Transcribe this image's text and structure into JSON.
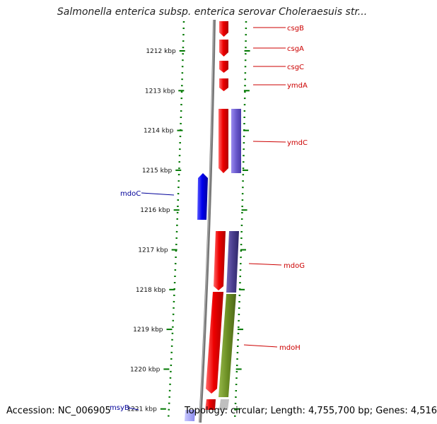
{
  "title": "Salmonella enterica subsp. enterica serovar Choleraesuis str...",
  "footer": {
    "accession": "Accession: NC_006905",
    "summary": "Topology: circular; Length: 4,755,700 bp; Genes: 4,516"
  },
  "ticks": [
    "1212 kbp",
    "1213 kbp",
    "1214 kbp",
    "1215 kbp",
    "1216 kbp",
    "1217 kbp",
    "1218 kbp",
    "1219 kbp",
    "1220 kbp",
    "1221 kbp"
  ],
  "genes": [
    {
      "name": "csgB",
      "strand": "reverse",
      "color": "#ee0000"
    },
    {
      "name": "csgA",
      "strand": "reverse",
      "color": "#ee0000"
    },
    {
      "name": "csgC",
      "strand": "reverse",
      "color": "#ee0000"
    },
    {
      "name": "ymdA",
      "strand": "reverse",
      "color": "#ee0000"
    },
    {
      "name": "ymdC",
      "strand": "reverse",
      "color": "#ee0000"
    },
    {
      "name": "mdoC",
      "strand": "forward",
      "color": "#0000ee"
    },
    {
      "name": "mdoG",
      "strand": "reverse",
      "color": "#ee0000"
    },
    {
      "name": "mdoH",
      "strand": "reverse",
      "color": "#ee0000"
    },
    {
      "name": "msyB",
      "strand": "forward",
      "color": "#9999ee"
    }
  ],
  "colors": {
    "reverse_gene": "#ee0000",
    "forward_gene": "#0000ee",
    "cog_purple": "#6a5acd",
    "cog_dark": "#4b3f8f",
    "cog_green": "#6b8e23",
    "backbone": "#777777",
    "tick": "#007700"
  }
}
